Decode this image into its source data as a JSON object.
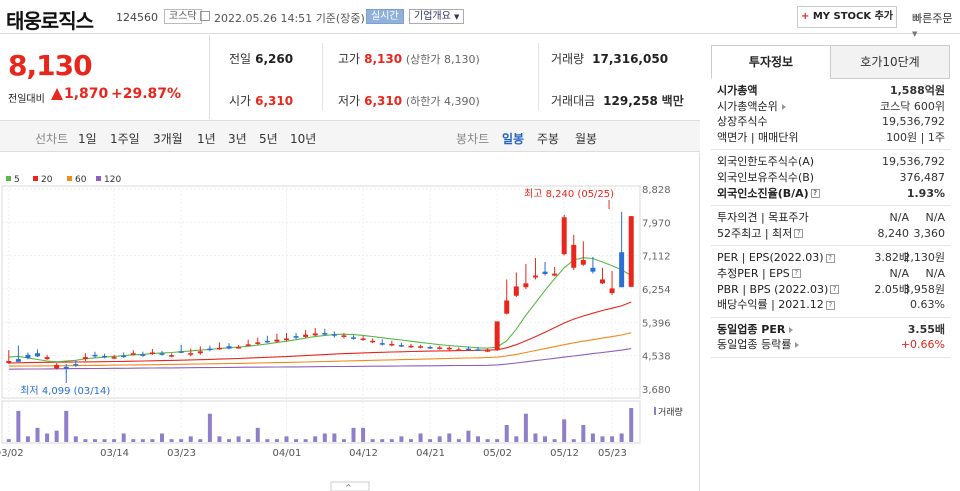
{
  "header": {
    "name": "태웅로직스",
    "code": "124560",
    "market": "코스닥",
    "datetime": "2022.05.26 14:51",
    "basis": "기준(장중)",
    "live": "실시간",
    "company": "기업개요",
    "my_stock": "MY STOCK 추가",
    "quick_order": "빠른주문"
  },
  "price": {
    "current": "8,130",
    "change_label": "전일대비",
    "change": "1,870",
    "change_pct": "+29.87%"
  },
  "stats": {
    "prev_label": "전일",
    "prev": "6,260",
    "high_label": "고가",
    "high": "8,130",
    "high_sub": "(상한가 8,130)",
    "vol_label": "거래량",
    "vol": "17,316,050",
    "open_label": "시가",
    "open": "6,310",
    "low_label": "저가",
    "low": "6,310",
    "low_sub": "(하한가 4,390)",
    "amt_label": "거래대금",
    "amt": "129,258",
    "amt_unit": "백만"
  },
  "tabs": {
    "line_chart": "선차트",
    "periods": [
      "1일",
      "1주일",
      "3개월",
      "1년",
      "3년",
      "5년",
      "10년"
    ],
    "candle_chart": "봉차트",
    "candles": [
      "일봉",
      "주봉",
      "월봉"
    ]
  },
  "colors": {
    "up": "#e8261c",
    "down": "#2a6fd4",
    "ma5": "#58b947",
    "ma20": "#e8261c",
    "ma60": "#f28a1a",
    "ma120": "#8e5fbf",
    "volume": "#8f7fc7"
  },
  "chart_data": {
    "type": "candlestick",
    "legend": [
      "5",
      "20",
      "60",
      "120"
    ],
    "y_ticks": [
      8828,
      7970,
      7112,
      6254,
      5396,
      4538,
      3680
    ],
    "x_ticks": [
      "03/02",
      "03/14",
      "03/23",
      "04/01",
      "04/12",
      "04/21",
      "05/02",
      "05/12",
      "05/23"
    ],
    "max_label": "최고 8,240 (05/25)",
    "min_label": "최저 4,099 (03/14)",
    "volume_label": "거래량",
    "candles": [
      [
        4400,
        4680,
        4350,
        4320,
        1
      ],
      [
        4450,
        4490,
        4380,
        4800,
        0
      ],
      [
        4560,
        4620,
        4480,
        4440,
        0
      ],
      [
        4600,
        4700,
        4520,
        4500,
        0
      ],
      [
        4500,
        4560,
        4450,
        4430,
        1
      ],
      [
        4300,
        4350,
        4210,
        4180,
        1
      ],
      [
        4250,
        4320,
        4200,
        4099,
        0
      ],
      [
        4320,
        4420,
        4300,
        4250,
        0
      ],
      [
        4500,
        4600,
        4450,
        4400,
        1
      ],
      [
        4560,
        4640,
        4520,
        4480,
        0
      ],
      [
        4530,
        4590,
        4510,
        4470,
        0
      ],
      [
        4500,
        4560,
        4480,
        4450,
        1
      ],
      [
        4540,
        4620,
        4520,
        4480,
        0
      ],
      [
        4600,
        4680,
        4560,
        4540,
        1
      ],
      [
        4570,
        4640,
        4550,
        4510,
        0
      ],
      [
        4620,
        4710,
        4580,
        4560,
        1
      ],
      [
        4600,
        4660,
        4560,
        4540,
        0
      ],
      [
        4550,
        4600,
        4520,
        4500,
        1
      ],
      [
        4650,
        4820,
        4620,
        4600,
        0
      ],
      [
        4600,
        4720,
        4560,
        4520,
        1
      ],
      [
        4650,
        4780,
        4600,
        4560,
        1
      ],
      [
        4720,
        4800,
        4680,
        4650,
        0
      ],
      [
        4740,
        4880,
        4700,
        4690,
        1
      ],
      [
        4780,
        4860,
        4720,
        4700,
        0
      ],
      [
        4760,
        4810,
        4730,
        4720,
        1
      ],
      [
        4830,
        4950,
        4800,
        4780,
        1
      ],
      [
        4880,
        5000,
        4840,
        4820,
        1
      ],
      [
        4920,
        5050,
        4880,
        4860,
        0
      ],
      [
        4950,
        5100,
        4900,
        4880,
        1
      ],
      [
        4980,
        5120,
        4940,
        4900,
        1
      ],
      [
        5040,
        5120,
        5000,
        4960,
        0
      ],
      [
        5080,
        5200,
        5020,
        5000,
        1
      ],
      [
        5110,
        5250,
        5060,
        5040,
        1
      ],
      [
        5120,
        5230,
        5080,
        5060,
        0
      ],
      [
        5090,
        5160,
        5060,
        5000,
        0
      ],
      [
        5060,
        5120,
        5020,
        4980,
        1
      ],
      [
        5010,
        5060,
        4980,
        4950,
        0
      ],
      [
        4980,
        5050,
        4950,
        4920,
        1
      ],
      [
        4920,
        4980,
        4890,
        4860,
        1
      ],
      [
        4860,
        4960,
        4830,
        4800,
        0
      ],
      [
        4840,
        4920,
        4810,
        4780,
        1
      ],
      [
        4810,
        4870,
        4790,
        4760,
        0
      ],
      [
        4790,
        4840,
        4760,
        4740,
        1
      ],
      [
        4780,
        4820,
        4750,
        4730,
        1
      ],
      [
        4760,
        4800,
        4730,
        4710,
        0
      ],
      [
        4750,
        4790,
        4720,
        4700,
        1
      ],
      [
        4740,
        4780,
        4710,
        4650,
        1
      ],
      [
        4700,
        4750,
        4680,
        4660,
        1
      ],
      [
        4720,
        4780,
        4700,
        4690,
        0
      ],
      [
        4700,
        4760,
        4680,
        4660,
        0
      ],
      [
        4680,
        4720,
        4650,
        4630,
        1
      ],
      [
        5420,
        5420,
        4680,
        4660,
        1
      ],
      [
        5960,
        6500,
        5620,
        5600,
        1
      ],
      [
        6320,
        6680,
        6080,
        6050,
        1
      ],
      [
        6400,
        6900,
        6300,
        6250,
        1
      ],
      [
        6600,
        7050,
        6550,
        6500,
        1
      ],
      [
        6700,
        6950,
        6640,
        6600,
        0
      ],
      [
        6650,
        6820,
        6600,
        6580,
        1
      ],
      [
        8100,
        8160,
        7150,
        7120,
        1
      ],
      [
        7390,
        7650,
        6800,
        6740,
        1
      ],
      [
        7000,
        7480,
        6880,
        6850,
        1
      ],
      [
        6800,
        7080,
        6700,
        6650,
        0
      ],
      [
        6500,
        6800,
        6400,
        6380,
        1
      ],
      [
        6270,
        6720,
        6150,
        6100,
        1
      ],
      [
        6300,
        6470,
        7200,
        8240,
        0
      ],
      [
        8130,
        8130,
        6310,
        6310,
        1
      ]
    ],
    "volumes": [
      1,
      11,
      2,
      5,
      3,
      4,
      11,
      2,
      1,
      1,
      1,
      1,
      3,
      1,
      1,
      1,
      3,
      1,
      1,
      2,
      1,
      10,
      2,
      1,
      2,
      1,
      5,
      1,
      1,
      2,
      1,
      1,
      2,
      3,
      3,
      1,
      5,
      5,
      1,
      1,
      1,
      2,
      1,
      3,
      1,
      2,
      3,
      1,
      4,
      2,
      1,
      1,
      6,
      2,
      10,
      3,
      2,
      1,
      8,
      1,
      6,
      3,
      2,
      2,
      3,
      12
    ],
    "ma5": [
      4500,
      4520,
      4480,
      4440,
      4400,
      4380,
      4400,
      4420,
      4460,
      4480,
      4500,
      4520,
      4540,
      4560,
      4570,
      4590,
      4610,
      4620,
      4640,
      4660,
      4680,
      4700,
      4720,
      4740,
      4760,
      4780,
      4810,
      4840,
      4880,
      4910,
      4950,
      4990,
      5030,
      5060,
      5080,
      5090,
      5080,
      5060,
      5030,
      5000,
      4970,
      4940,
      4910,
      4880,
      4850,
      4820,
      4800,
      4780,
      4760,
      4740,
      4730,
      4760,
      4920,
      5220,
      5580,
      5900,
      6220,
      6520,
      6800,
      7000,
      7060,
      7040,
      6950,
      6850,
      6750,
      6600
    ],
    "ma20": [
      4350,
      4355,
      4360,
      4365,
      4368,
      4370,
      4372,
      4375,
      4378,
      4380,
      4383,
      4387,
      4390,
      4395,
      4400,
      4405,
      4410,
      4416,
      4422,
      4428,
      4435,
      4442,
      4450,
      4458,
      4466,
      4475,
      4485,
      4495,
      4505,
      4515,
      4528,
      4540,
      4552,
      4565,
      4578,
      4590,
      4600,
      4610,
      4618,
      4625,
      4632,
      4638,
      4645,
      4650,
      4655,
      4660,
      4664,
      4668,
      4672,
      4676,
      4680,
      4690,
      4740,
      4820,
      4920,
      5030,
      5140,
      5260,
      5380,
      5480,
      5560,
      5630,
      5700,
      5760,
      5820,
      5920
    ],
    "ma60": [
      4270,
      4270,
      4272,
      4274,
      4276,
      4278,
      4280,
      4282,
      4285,
      4288,
      4291,
      4294,
      4297,
      4300,
      4303,
      4306,
      4309,
      4312,
      4316,
      4320,
      4324,
      4328,
      4332,
      4336,
      4340,
      4345,
      4350,
      4355,
      4360,
      4365,
      4370,
      4376,
      4382,
      4388,
      4394,
      4400,
      4406,
      4412,
      4418,
      4424,
      4430,
      4436,
      4442,
      4448,
      4454,
      4460,
      4466,
      4472,
      4478,
      4484,
      4490,
      4500,
      4530,
      4570,
      4620,
      4670,
      4720,
      4770,
      4820,
      4870,
      4910,
      4950,
      4990,
      5030,
      5070,
      5130
    ],
    "ma120": [
      4190,
      4192,
      4194,
      4196,
      4198,
      4200,
      4202,
      4204,
      4206,
      4208,
      4210,
      4212,
      4214,
      4216,
      4218,
      4220,
      4222,
      4224,
      4226,
      4228,
      4230,
      4232,
      4234,
      4236,
      4238,
      4240,
      4242,
      4244,
      4246,
      4248,
      4250,
      4252,
      4254,
      4256,
      4258,
      4260,
      4262,
      4264,
      4266,
      4268,
      4270,
      4272,
      4274,
      4276,
      4278,
      4280,
      4282,
      4284,
      4286,
      4288,
      4290,
      4300,
      4320,
      4350,
      4380,
      4410,
      4440,
      4470,
      4500,
      4530,
      4560,
      4590,
      4620,
      4650,
      4680,
      4720
    ]
  },
  "invest": {
    "tab_on": "투자정보",
    "tab_off": "호가10단계",
    "rows1": [
      {
        "l": "시가총액",
        "r": "1,588억원",
        "bold": true
      },
      {
        "l": "시가총액순위",
        "r": "코스닥 600위"
      },
      {
        "l": "상장주식수",
        "r": "19,536,792"
      },
      {
        "l": "액면가 | 매매단위",
        "r": "100원 | 1주"
      }
    ],
    "rows2": [
      {
        "l": "외국인한도주식수(A)",
        "r": "19,536,792"
      },
      {
        "l": "외국인보유주식수(B)",
        "r": "376,487"
      },
      {
        "l": "외국인소진율(B/A)",
        "r": "1.93%",
        "bold": true
      }
    ],
    "rows3": [
      {
        "l": "투자의견 | 목표주가",
        "r1": "N/A",
        "r": "N/A"
      },
      {
        "l": "52주최고 | 최저",
        "r1": "8,240",
        "r": "3,360"
      }
    ],
    "rows4": [
      {
        "l": "PER | EPS(2022.03)",
        "r1": "3.82배",
        "r": "2,130원"
      },
      {
        "l": "추정PER | EPS",
        "r1": "N/A",
        "r": "N/A"
      },
      {
        "l": "PBR | BPS (2022.03)",
        "r1": "2.05배",
        "r": "3,958원"
      },
      {
        "l": "배당수익률 | 2021.12",
        "r": "0.63%"
      }
    ],
    "rows5": [
      {
        "l": "동일업종 PER",
        "r": "3.55배",
        "bold": true
      },
      {
        "l": "동일업종 등락률",
        "r": "+0.66%",
        "red": true
      }
    ]
  }
}
